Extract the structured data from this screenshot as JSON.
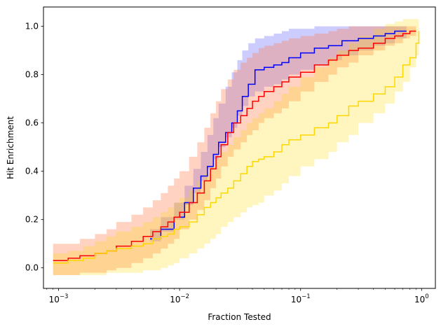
{
  "chart_data": {
    "type": "line",
    "title": "",
    "xlabel": "Fraction Tested",
    "ylabel": "Hit Enrichment",
    "xscale": "log",
    "xlim": [
      0.00075,
      1.3
    ],
    "ylim": [
      -0.085,
      1.08
    ],
    "grid": false,
    "legend": "none",
    "x_ticks": [
      {
        "value": 0.001,
        "base": "10",
        "exp": "−3"
      },
      {
        "value": 0.01,
        "base": "10",
        "exp": "−2"
      },
      {
        "value": 0.1,
        "base": "10",
        "exp": "−1"
      },
      {
        "value": 1,
        "base": "10",
        "exp": "0"
      }
    ],
    "y_ticks": [
      {
        "value": 0.0,
        "label": "0.0"
      },
      {
        "value": 0.2,
        "label": "0.2"
      },
      {
        "value": 0.4,
        "label": "0.4"
      },
      {
        "value": 0.6,
        "label": "0.6"
      },
      {
        "value": 0.8,
        "label": "0.8"
      },
      {
        "value": 1.0,
        "label": "1.0"
      }
    ],
    "series": [
      {
        "color": "#0000ff",
        "band_color": "#0000ff",
        "band_opacity": 0.2,
        "x": [
          0.0057,
          0.007,
          0.009,
          0.011,
          0.013,
          0.015,
          0.017,
          0.019,
          0.021,
          0.024,
          0.027,
          0.03,
          0.033,
          0.037,
          0.042,
          0.05,
          0.06,
          0.07,
          0.08,
          0.1,
          0.13,
          0.17,
          0.22,
          0.3,
          0.4,
          0.5,
          0.6,
          0.75
        ],
        "y": [
          0.12,
          0.16,
          0.21,
          0.27,
          0.33,
          0.38,
          0.42,
          0.47,
          0.52,
          0.56,
          0.6,
          0.65,
          0.71,
          0.76,
          0.82,
          0.83,
          0.84,
          0.85,
          0.87,
          0.89,
          0.91,
          0.92,
          0.94,
          0.95,
          0.96,
          0.97,
          0.98,
          0.98
        ],
        "lower": [
          0.08,
          0.11,
          0.15,
          0.2,
          0.26,
          0.31,
          0.36,
          0.41,
          0.45,
          0.5,
          0.54,
          0.58,
          0.63,
          0.67,
          0.71,
          0.73,
          0.75,
          0.76,
          0.78,
          0.8,
          0.82,
          0.84,
          0.86,
          0.88,
          0.9,
          0.92,
          0.93,
          0.95
        ],
        "upper": [
          0.16,
          0.21,
          0.27,
          0.34,
          0.41,
          0.48,
          0.55,
          0.62,
          0.68,
          0.75,
          0.81,
          0.86,
          0.9,
          0.93,
          0.95,
          0.96,
          0.97,
          0.98,
          0.99,
          0.99,
          1.0,
          1.0,
          1.0,
          1.0,
          1.0,
          1.0,
          1.0,
          1.0
        ]
      },
      {
        "color": "#ff0000",
        "band_color": "#ff7f50",
        "band_opacity": 0.35,
        "x": [
          0.0009,
          0.0012,
          0.0015,
          0.002,
          0.0025,
          0.003,
          0.004,
          0.005,
          0.006,
          0.007,
          0.008,
          0.009,
          0.01,
          0.012,
          0.014,
          0.016,
          0.018,
          0.02,
          0.022,
          0.025,
          0.028,
          0.032,
          0.036,
          0.04,
          0.045,
          0.05,
          0.06,
          0.07,
          0.08,
          0.1,
          0.13,
          0.17,
          0.2,
          0.25,
          0.3,
          0.4,
          0.5,
          0.6,
          0.7,
          0.8,
          0.9
        ],
        "y": [
          0.03,
          0.04,
          0.05,
          0.06,
          0.07,
          0.09,
          0.11,
          0.13,
          0.15,
          0.17,
          0.19,
          0.21,
          0.23,
          0.27,
          0.31,
          0.36,
          0.41,
          0.46,
          0.51,
          0.56,
          0.6,
          0.63,
          0.66,
          0.69,
          0.71,
          0.73,
          0.75,
          0.77,
          0.79,
          0.81,
          0.84,
          0.86,
          0.88,
          0.9,
          0.91,
          0.93,
          0.95,
          0.96,
          0.97,
          0.98,
          0.98
        ],
        "lower": [
          -0.03,
          -0.03,
          -0.03,
          -0.02,
          -0.02,
          -0.01,
          0.0,
          0.02,
          0.04,
          0.06,
          0.08,
          0.1,
          0.12,
          0.16,
          0.2,
          0.24,
          0.28,
          0.33,
          0.37,
          0.42,
          0.46,
          0.49,
          0.52,
          0.55,
          0.57,
          0.6,
          0.62,
          0.64,
          0.66,
          0.69,
          0.73,
          0.77,
          0.8,
          0.83,
          0.85,
          0.88,
          0.9,
          0.92,
          0.93,
          0.95,
          0.96
        ],
        "upper": [
          0.1,
          0.1,
          0.12,
          0.14,
          0.16,
          0.19,
          0.22,
          0.25,
          0.28,
          0.31,
          0.34,
          0.37,
          0.4,
          0.46,
          0.52,
          0.58,
          0.64,
          0.69,
          0.74,
          0.78,
          0.82,
          0.85,
          0.87,
          0.89,
          0.91,
          0.92,
          0.93,
          0.94,
          0.95,
          0.96,
          0.97,
          0.98,
          0.99,
          1.0,
          1.0,
          1.0,
          1.0,
          1.0,
          1.0,
          1.0,
          1.0
        ]
      },
      {
        "color": "#ffd700",
        "band_color": "#ffd700",
        "band_opacity": 0.25,
        "x": [
          0.0009,
          0.0012,
          0.0016,
          0.002,
          0.0025,
          0.003,
          0.004,
          0.005,
          0.006,
          0.007,
          0.008,
          0.009,
          0.01,
          0.012,
          0.014,
          0.016,
          0.018,
          0.02,
          0.022,
          0.025,
          0.028,
          0.032,
          0.036,
          0.04,
          0.045,
          0.05,
          0.06,
          0.07,
          0.08,
          0.1,
          0.13,
          0.17,
          0.2,
          0.25,
          0.3,
          0.4,
          0.5,
          0.6,
          0.7,
          0.8,
          0.9,
          0.95
        ],
        "y": [
          0.02,
          0.03,
          0.04,
          0.06,
          0.07,
          0.08,
          0.09,
          0.1,
          0.12,
          0.13,
          0.14,
          0.16,
          0.17,
          0.19,
          0.22,
          0.25,
          0.27,
          0.29,
          0.31,
          0.33,
          0.36,
          0.39,
          0.42,
          0.44,
          0.45,
          0.46,
          0.48,
          0.51,
          0.53,
          0.55,
          0.58,
          0.6,
          0.63,
          0.67,
          0.69,
          0.72,
          0.75,
          0.79,
          0.84,
          0.87,
          0.93,
          0.98
        ],
        "lower": [
          -0.03,
          -0.03,
          -0.03,
          -0.03,
          -0.03,
          -0.02,
          -0.02,
          -0.02,
          -0.01,
          -0.01,
          0.0,
          0.01,
          0.02,
          0.04,
          0.06,
          0.08,
          0.1,
          0.12,
          0.14,
          0.17,
          0.19,
          0.21,
          0.23,
          0.25,
          0.26,
          0.27,
          0.3,
          0.32,
          0.35,
          0.38,
          0.42,
          0.45,
          0.48,
          0.52,
          0.55,
          0.6,
          0.64,
          0.68,
          0.73,
          0.77,
          0.83,
          0.88
        ],
        "upper": [
          0.06,
          0.07,
          0.09,
          0.11,
          0.13,
          0.15,
          0.17,
          0.19,
          0.21,
          0.23,
          0.25,
          0.27,
          0.29,
          0.32,
          0.36,
          0.39,
          0.42,
          0.45,
          0.48,
          0.51,
          0.54,
          0.57,
          0.6,
          0.62,
          0.64,
          0.66,
          0.69,
          0.72,
          0.75,
          0.79,
          0.83,
          0.87,
          0.9,
          0.93,
          0.96,
          0.99,
          1.01,
          1.02,
          1.03,
          1.03,
          1.03,
          1.03
        ]
      }
    ]
  }
}
